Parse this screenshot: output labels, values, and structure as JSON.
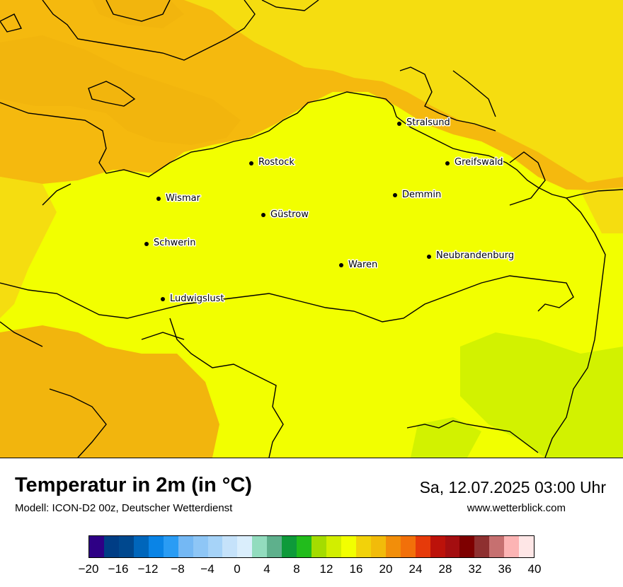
{
  "map": {
    "title": "Temperatur in 2m (in °C)",
    "model": "Modell: ICON-D2 00z, Deutscher Wetterdienst",
    "datetime": "Sa, 12.07.2025 03:00 Uhr",
    "website": "www.wetterblick.com",
    "colors": {
      "sea_warm": "#f5b90e",
      "land_main": "#f2ff00",
      "sea_coastal": "#f5dd10",
      "warm_patch": "#f2b50d",
      "cool_patch": "#d2f200"
    },
    "cities": [
      {
        "name": "Stralsund"
      },
      {
        "name": "Rostock"
      },
      {
        "name": "Greifswald"
      },
      {
        "name": "Wismar"
      },
      {
        "name": "Demmin"
      },
      {
        "name": "Güstrow"
      },
      {
        "name": "Schwerin"
      },
      {
        "name": "Neubrandenburg"
      },
      {
        "name": "Waren"
      },
      {
        "name": "Ludwigslust"
      }
    ]
  },
  "legend": {
    "colors": [
      "#2e0085",
      "#003d85",
      "#00488e",
      "#0066bb",
      "#0a84e6",
      "#2a9cf4",
      "#74b8f4",
      "#8ec6f6",
      "#a6d3f8",
      "#c5e2fa",
      "#daeefc",
      "#92dcbe",
      "#5eb08c",
      "#0e9a3a",
      "#22bc1c",
      "#a4dc00",
      "#d2ee00",
      "#f2ff00",
      "#f2d20a",
      "#f2bb0a",
      "#f28e0a",
      "#f2700a",
      "#e63a0a",
      "#bc120a",
      "#a40e10",
      "#7e0000",
      "#8e3030",
      "#c67070",
      "#fcb4b4",
      "#fee6e6"
    ],
    "ticks": [
      "−20",
      "−16",
      "−12",
      "−8",
      "−4",
      "0",
      "4",
      "8",
      "12",
      "16",
      "20",
      "24",
      "28",
      "32",
      "36",
      "40"
    ]
  }
}
